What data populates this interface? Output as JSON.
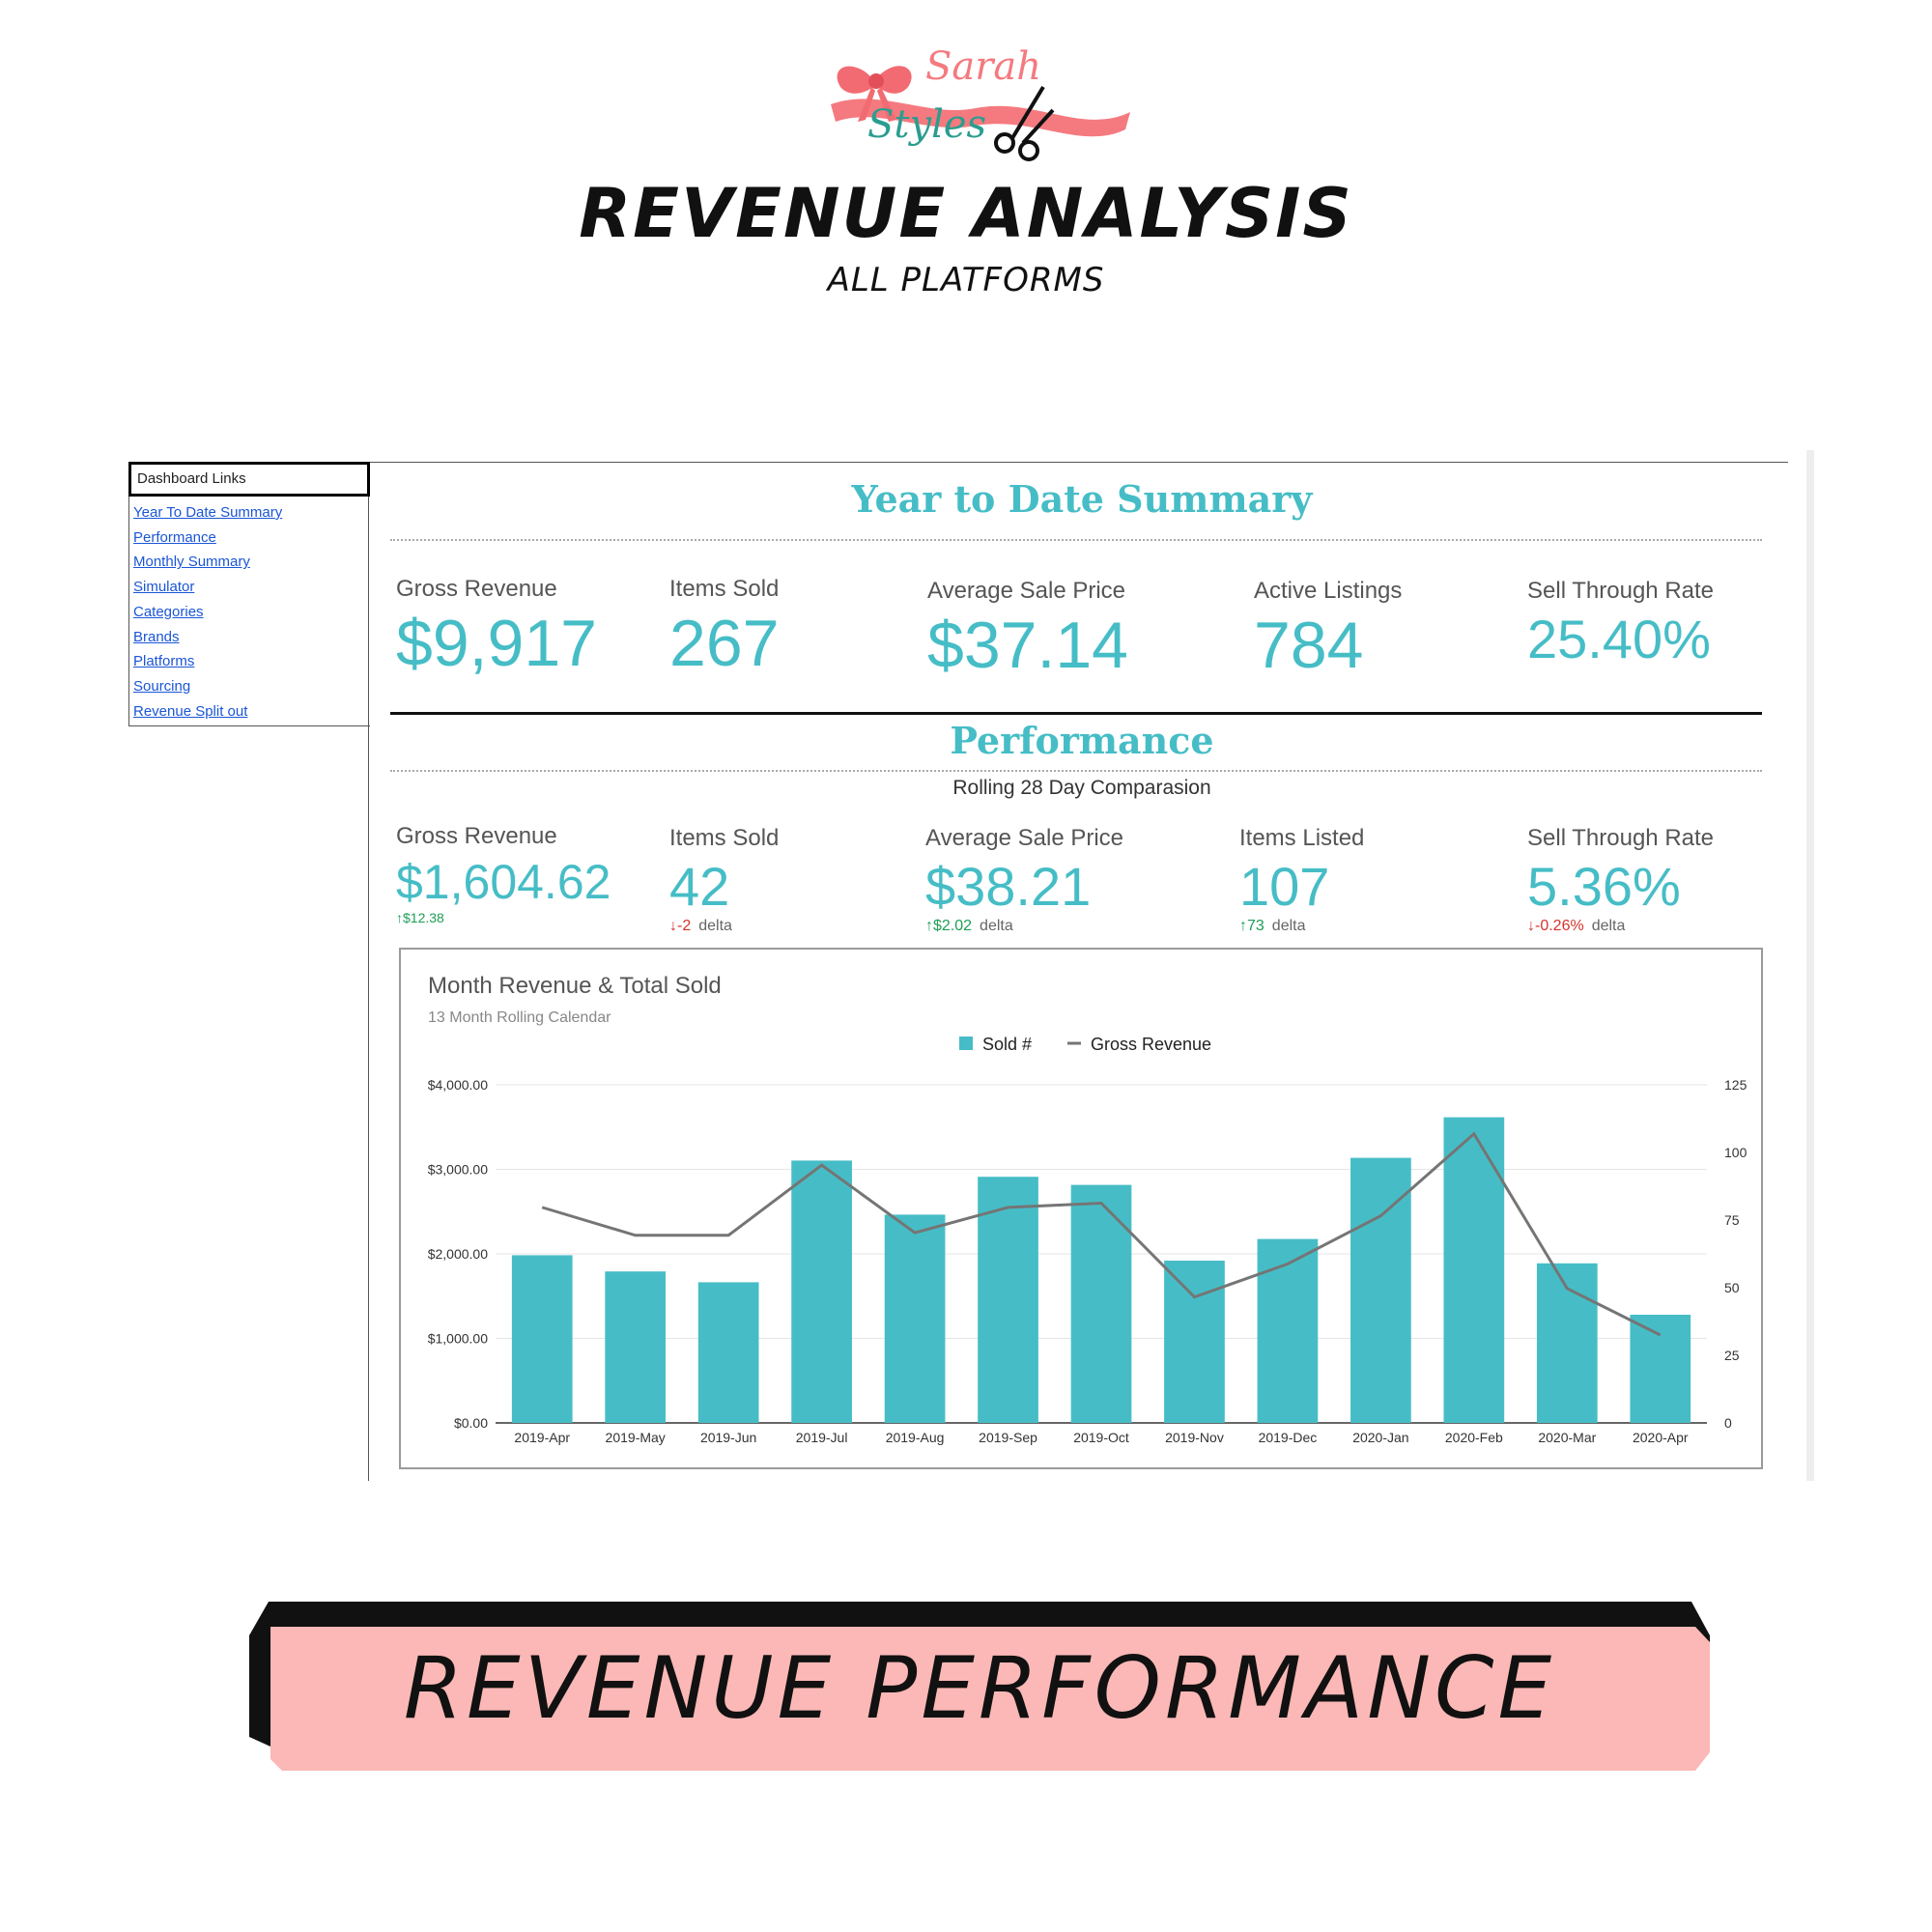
{
  "brand": {
    "name": "Sarah Styles",
    "line1": "Sarah",
    "line2": "Styles",
    "accent": "#f47a7f",
    "teal": "#2a9d8f"
  },
  "header": {
    "title": "REVENUE ANALYSIS",
    "subtitle": "ALL PLATFORMS"
  },
  "sidebar": {
    "title": "Dashboard Links",
    "links": [
      "Year To Date Summary",
      "Performance",
      "Monthly Summary",
      "Simulator",
      "Categories",
      "Brands",
      "Platforms",
      "Sourcing",
      "Revenue Split out"
    ]
  },
  "ytd": {
    "title": "Year to Date Summary",
    "kpis": [
      {
        "label": "Gross Revenue",
        "value": "$9,917"
      },
      {
        "label": "Items Sold",
        "value": "267"
      },
      {
        "label": "Average Sale Price",
        "value": "$37.14"
      },
      {
        "label": "Active Listings",
        "value": "784"
      },
      {
        "label": "Sell Through Rate",
        "value": "25.40%"
      }
    ]
  },
  "performance": {
    "title": "Performance",
    "subtitle": "Rolling 28 Day Comparasion",
    "kpis": [
      {
        "label": "Gross Revenue",
        "value": "$1,604.62",
        "delta": "$12.38",
        "direction": "up",
        "delta_word": ""
      },
      {
        "label": "Items Sold",
        "value": "42",
        "delta": "-2",
        "direction": "down",
        "delta_word": "delta"
      },
      {
        "label": "Average Sale Price",
        "value": "$38.21",
        "delta": "$2.02",
        "direction": "up",
        "delta_word": "delta"
      },
      {
        "label": "Items Listed",
        "value": "107",
        "delta": "73",
        "direction": "up",
        "delta_word": "delta"
      },
      {
        "label": "Sell Through Rate",
        "value": "5.36%",
        "delta": "-0.26%",
        "direction": "down",
        "delta_word": "delta"
      }
    ]
  },
  "colors": {
    "teal": "#46bdc6",
    "line": "#757575",
    "up": "#1e9e57",
    "down": "#d6342c",
    "banner": "#fbb8b6"
  },
  "chart_data": {
    "type": "bar",
    "title": "Month Revenue & Total Sold",
    "subtitle": "13 Month Rolling Calendar",
    "categories": [
      "2019-Apr",
      "2019-May",
      "2019-Jun",
      "2019-Jul",
      "2019-Aug",
      "2019-Sep",
      "2019-Oct",
      "2019-Nov",
      "2019-Dec",
      "2020-Jan",
      "2020-Feb",
      "2020-Mar",
      "2020-Apr"
    ],
    "series": [
      {
        "name": "Sold #",
        "type": "bar",
        "axis": "right",
        "values": [
          62,
          56,
          52,
          97,
          77,
          91,
          88,
          60,
          68,
          98,
          113,
          59,
          40
        ]
      },
      {
        "name": "Gross Revenue",
        "type": "line",
        "axis": "left",
        "values": [
          2550,
          2220,
          2220,
          3050,
          2250,
          2550,
          2600,
          1490,
          1880,
          2450,
          3420,
          1590,
          1040
        ]
      }
    ],
    "left_axis": {
      "ticks": [
        "$0.00",
        "$1,000.00",
        "$2,000.00",
        "$3,000.00",
        "$4,000.00"
      ],
      "min": 0,
      "max": 4000
    },
    "right_axis": {
      "ticks": [
        "0",
        "25",
        "50",
        "75",
        "100",
        "125"
      ],
      "min": 0,
      "max": 125
    },
    "legend": "top-center",
    "grid": true
  },
  "banner": {
    "text": "REVENUE PERFORMANCE"
  }
}
